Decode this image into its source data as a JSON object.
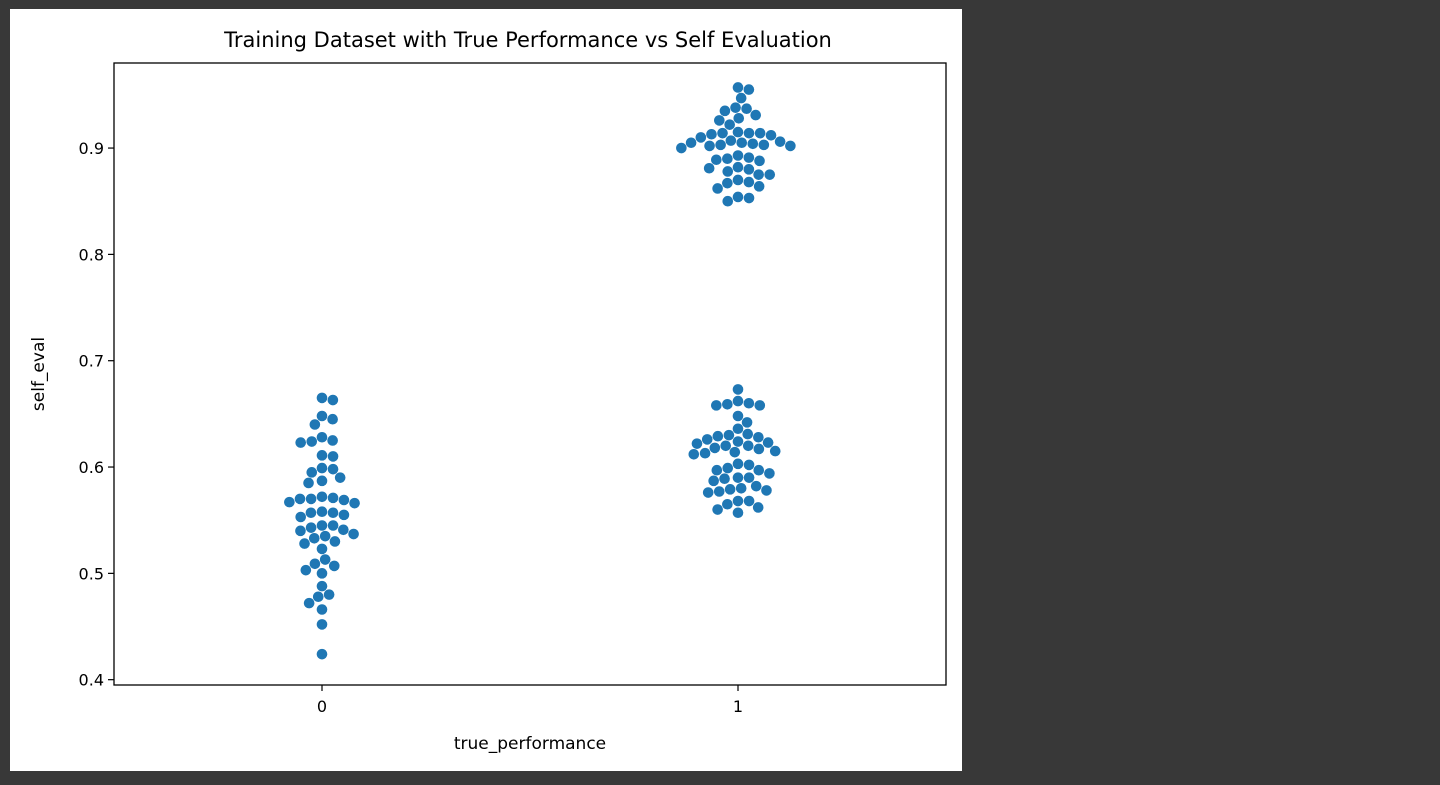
{
  "chart_data": {
    "type": "scatter",
    "subtype": "swarm",
    "title": "Training Dataset with True Performance vs Self Evaluation",
    "xlabel": "true_performance",
    "ylabel": "self_eval",
    "categories": [
      "0",
      "1"
    ],
    "ylim": [
      0.395,
      0.98
    ],
    "yticks": [
      "0.4",
      "0.5",
      "0.6",
      "0.7",
      "0.8",
      "0.9"
    ],
    "grid": false,
    "point_color": "#1f77b4",
    "groups": [
      {
        "category": "0",
        "y": [
          0.665,
          0.663,
          0.648,
          0.645,
          0.64,
          0.628,
          0.625,
          0.624,
          0.623,
          0.611,
          0.61,
          0.599,
          0.598,
          0.595,
          0.59,
          0.587,
          0.585,
          0.572,
          0.571,
          0.57,
          0.57,
          0.569,
          0.567,
          0.566,
          0.558,
          0.557,
          0.557,
          0.555,
          0.553,
          0.545,
          0.545,
          0.543,
          0.541,
          0.54,
          0.537,
          0.535,
          0.533,
          0.53,
          0.528,
          0.523,
          0.513,
          0.509,
          0.507,
          0.503,
          0.5,
          0.488,
          0.48,
          0.478,
          0.472,
          0.466,
          0.452,
          0.424
        ]
      },
      {
        "category": "1",
        "y": [
          0.957,
          0.955,
          0.947,
          0.938,
          0.937,
          0.935,
          0.931,
          0.928,
          0.926,
          0.922,
          0.915,
          0.914,
          0.914,
          0.914,
          0.913,
          0.912,
          0.91,
          0.907,
          0.906,
          0.905,
          0.905,
          0.904,
          0.903,
          0.903,
          0.902,
          0.902,
          0.9,
          0.893,
          0.891,
          0.89,
          0.889,
          0.888,
          0.882,
          0.881,
          0.88,
          0.878,
          0.875,
          0.875,
          0.87,
          0.868,
          0.867,
          0.864,
          0.862,
          0.854,
          0.853,
          0.85,
          0.673,
          0.662,
          0.66,
          0.659,
          0.658,
          0.658,
          0.648,
          0.642,
          0.636,
          0.631,
          0.63,
          0.629,
          0.628,
          0.626,
          0.624,
          0.623,
          0.622,
          0.62,
          0.62,
          0.618,
          0.617,
          0.615,
          0.614,
          0.613,
          0.612,
          0.603,
          0.602,
          0.599,
          0.597,
          0.597,
          0.594,
          0.59,
          0.59,
          0.589,
          0.587,
          0.582,
          0.58,
          0.579,
          0.578,
          0.577,
          0.576,
          0.568,
          0.568,
          0.565,
          0.562,
          0.56,
          0.557
        ]
      }
    ]
  }
}
